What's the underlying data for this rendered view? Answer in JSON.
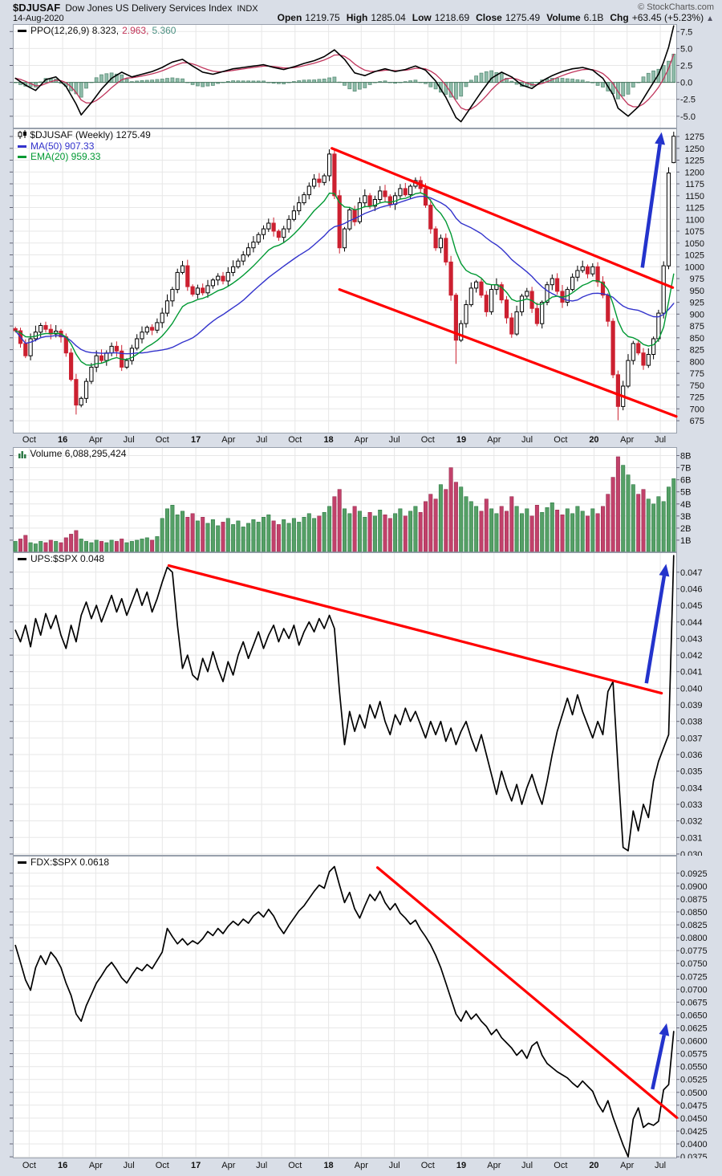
{
  "header": {
    "symbol": "$DJUSAF",
    "name": "Dow Jones US Delivery Services Index",
    "exchange": "INDX",
    "date": "14-Aug-2020",
    "credit": "© StockCharts.com",
    "open_label": "Open",
    "open_value": "1219.75",
    "high_label": "High",
    "high_value": "1285.04",
    "low_label": "Low",
    "low_value": "1218.69",
    "close_label": "Close",
    "close_value": "1275.49",
    "volume_label": "Volume",
    "volume_value": "6.1B",
    "chg_label": "Chg",
    "chg_value": "+63.45 (+5.23%)",
    "chg_arrow": "▲"
  },
  "colors": {
    "grid": "#e7e7e7",
    "panel_border": "#98a0ac",
    "up_candle": "#000000",
    "down_candle": "#cc2030",
    "ma50": "#3333cc",
    "ema20": "#009933",
    "ppo_line": "#000000",
    "ppo_signal": "#c0355c",
    "ppo_hist_fill": "#8fbcaa",
    "ppo_hist_stroke": "#5d8f79",
    "ppo_zero_line": "#46745e",
    "vol_up": "#55a066",
    "vol_up_stroke": "#2e7a46",
    "vol_down": "#c2416b",
    "vol_down_stroke": "#993050",
    "trendline": "#ff0000",
    "arrow": "#2333cc",
    "ratio_line": "#000000"
  },
  "chart_data": [
    {
      "id": "ppo",
      "type": "line",
      "legend": {
        "main": "PPO(12,26,9) 8.323,",
        "hist_value": "2.963,",
        "signal_value": "5.360"
      },
      "ylim": [
        -6.8,
        8.6
      ],
      "yticks": [
        "7.5",
        "5.0",
        "2.5",
        "0.0",
        "-2.5",
        "-5.0"
      ],
      "signal_window": 5,
      "series_anchors": [
        [
          0,
          0.6
        ],
        [
          2,
          -0.4
        ],
        [
          4,
          -1.2
        ],
        [
          6,
          0.4
        ],
        [
          8,
          0.8
        ],
        [
          10,
          -0.6
        ],
        [
          12,
          -3.2
        ],
        [
          13,
          -4.8
        ],
        [
          15,
          -3.0
        ],
        [
          17,
          -1.0
        ],
        [
          19,
          0.6
        ],
        [
          21,
          1.5
        ],
        [
          23,
          0.8
        ],
        [
          25,
          1.2
        ],
        [
          27,
          1.6
        ],
        [
          29,
          2.2
        ],
        [
          31,
          3.0
        ],
        [
          33,
          3.4
        ],
        [
          35,
          2.4
        ],
        [
          37,
          1.5
        ],
        [
          39,
          1.2
        ],
        [
          41,
          1.6
        ],
        [
          43,
          2.0
        ],
        [
          45,
          2.2
        ],
        [
          47,
          2.4
        ],
        [
          49,
          2.6
        ],
        [
          51,
          2.2
        ],
        [
          53,
          1.9
        ],
        [
          55,
          2.3
        ],
        [
          57,
          2.8
        ],
        [
          59,
          3.2
        ],
        [
          61,
          3.8
        ],
        [
          63,
          4.8
        ],
        [
          65,
          3.4
        ],
        [
          67,
          1.4
        ],
        [
          69,
          1.0
        ],
        [
          71,
          1.6
        ],
        [
          73,
          2.0
        ],
        [
          75,
          1.6
        ],
        [
          77,
          1.9
        ],
        [
          79,
          2.4
        ],
        [
          81,
          1.8
        ],
        [
          83,
          0.2
        ],
        [
          85,
          -2.2
        ],
        [
          87,
          -5.2
        ],
        [
          88,
          -5.8
        ],
        [
          90,
          -3.6
        ],
        [
          92,
          -1.4
        ],
        [
          94,
          0.6
        ],
        [
          96,
          1.5
        ],
        [
          98,
          0.8
        ],
        [
          100,
          -0.4
        ],
        [
          102,
          -0.9
        ],
        [
          104,
          0.2
        ],
        [
          106,
          1.0
        ],
        [
          108,
          1.6
        ],
        [
          110,
          2.0
        ],
        [
          112,
          2.2
        ],
        [
          114,
          1.8
        ],
        [
          116,
          0.6
        ],
        [
          118,
          -1.8
        ],
        [
          119,
          -3.8
        ],
        [
          121,
          -5.0
        ],
        [
          123,
          -3.6
        ],
        [
          125,
          -1.2
        ],
        [
          127,
          1.2
        ],
        [
          128,
          3.0
        ],
        [
          129,
          5.2
        ],
        [
          130,
          8.323
        ]
      ]
    },
    {
      "id": "price",
      "type": "candlestick",
      "legend": {
        "symbol": "$DJUSAF (Weekly) 1275.49",
        "ma": "MA(50) 907.33",
        "ema": "EMA(20) 959.33"
      },
      "ylim": [
        648,
        1292
      ],
      "yticks": [
        "1275",
        "1250",
        "1225",
        "1200",
        "1175",
        "1150",
        "1125",
        "1100",
        "1075",
        "1050",
        "1025",
        "1000",
        "975",
        "950",
        "925",
        "900",
        "875",
        "850",
        "825",
        "800",
        "775",
        "750",
        "725",
        "700",
        "675"
      ],
      "ma_samples": 25,
      "ema_samples": 11,
      "closes": [
        865,
        838,
        812,
        848,
        862,
        876,
        868,
        858,
        864,
        852,
        818,
        762,
        708,
        722,
        758,
        788,
        812,
        802,
        818,
        832,
        822,
        788,
        802,
        828,
        848,
        862,
        872,
        866,
        882,
        902,
        928,
        952,
        988,
        1002,
        958,
        942,
        955,
        945,
        960,
        972,
        980,
        970,
        988,
        1000,
        1012,
        1025,
        1040,
        1052,
        1068,
        1080,
        1092,
        1075,
        1062,
        1080,
        1100,
        1118,
        1135,
        1152,
        1170,
        1185,
        1178,
        1192,
        1238,
        1150,
        1040,
        1080,
        1120,
        1095,
        1135,
        1150,
        1128,
        1142,
        1160,
        1148,
        1132,
        1150,
        1165,
        1152,
        1170,
        1182,
        1165,
        1130,
        1080,
        1040,
        1060,
        1010,
        940,
        845,
        880,
        920,
        955,
        968,
        940,
        905,
        952,
        962,
        930,
        892,
        858,
        905,
        938,
        948,
        912,
        880,
        925,
        962,
        975,
        948,
        925,
        952,
        978,
        992,
        1000,
        985,
        1000,
        968,
        940,
        885,
        772,
        705,
        748,
        802,
        838,
        818,
        792,
        815,
        848,
        902,
        1002,
        1198,
        1275.49
      ],
      "last_candle": [
        1219.75,
        1285.04,
        1218.69,
        1275.49
      ],
      "low_overrides": {
        "12": 688,
        "87": 795,
        "119": 676
      },
      "high_overrides": {
        "62": 1248
      },
      "annotations": [
        {
          "type": "trendline",
          "from": [
            62.5,
            1250
          ],
          "to": [
            129.8,
            956
          ]
        },
        {
          "type": "trendline",
          "from": [
            64,
            952
          ],
          "to": [
            130.5,
            684
          ]
        },
        {
          "type": "arrow",
          "from": [
            123.8,
            998
          ],
          "to": [
            127.6,
            1284
          ]
        }
      ]
    },
    {
      "id": "volume",
      "type": "bar",
      "legend": {
        "text": "Volume 6,088,295,424"
      },
      "ylim": [
        0,
        8.7
      ],
      "yticks": [
        "8B",
        "7B",
        "6B",
        "5B",
        "4B",
        "3B",
        "2B",
        "1B"
      ],
      "values": [
        0.9,
        1.1,
        1.4,
        0.8,
        0.7,
        0.9,
        0.8,
        1.0,
        0.9,
        0.8,
        1.2,
        1.5,
        1.8,
        1.1,
        0.9,
        0.8,
        1.0,
        0.9,
        0.8,
        1.0,
        0.9,
        1.1,
        0.8,
        0.9,
        1.0,
        1.1,
        1.2,
        1.0,
        1.3,
        2.8,
        3.6,
        3.9,
        3.1,
        3.4,
        2.9,
        3.2,
        2.6,
        2.9,
        2.4,
        2.7,
        2.2,
        2.5,
        2.8,
        2.3,
        2.6,
        2.1,
        2.4,
        2.7,
        2.5,
        2.9,
        3.1,
        2.6,
        2.3,
        2.7,
        2.4,
        2.8,
        2.5,
        2.9,
        3.2,
        2.8,
        3.0,
        3.3,
        3.8,
        4.6,
        5.2,
        3.6,
        3.2,
        3.8,
        3.4,
        2.9,
        3.3,
        3.0,
        3.5,
        3.1,
        2.8,
        3.2,
        3.6,
        3.0,
        3.4,
        3.8,
        3.3,
        4.2,
        4.8,
        4.4,
        5.6,
        5.2,
        7.0,
        5.8,
        5.4,
        4.6,
        4.2,
        3.8,
        3.4,
        4.4,
        3.6,
        3.2,
        3.8,
        3.4,
        4.6,
        3.8,
        3.2,
        3.6,
        3.0,
        3.9,
        3.3,
        3.7,
        4.1,
        3.5,
        3.1,
        3.6,
        3.2,
        3.8,
        3.4,
        3.0,
        3.6,
        3.2,
        3.8,
        4.8,
        6.2,
        7.9,
        7.2,
        6.4,
        5.6,
        4.8,
        5.2,
        4.4,
        4.0,
        4.6,
        4.2,
        5.4,
        6.09
      ]
    },
    {
      "id": "ups",
      "type": "line",
      "legend": {
        "text": "UPS:$SPX 0.048"
      },
      "ylim": [
        0.0299,
        0.0482
      ],
      "yticks": [
        "0.047",
        "0.046",
        "0.045",
        "0.044",
        "0.043",
        "0.042",
        "0.041",
        "0.040",
        "0.039",
        "0.038",
        "0.037",
        "0.036",
        "0.035",
        "0.034",
        "0.033",
        "0.032",
        "0.031",
        "0.030"
      ],
      "values": [
        0.0435,
        0.0428,
        0.0438,
        0.0425,
        0.0442,
        0.0432,
        0.0445,
        0.0436,
        0.0444,
        0.0432,
        0.0424,
        0.0438,
        0.0428,
        0.0444,
        0.0452,
        0.0442,
        0.045,
        0.044,
        0.0448,
        0.0456,
        0.0446,
        0.0454,
        0.0444,
        0.0452,
        0.046,
        0.045,
        0.0458,
        0.0446,
        0.0454,
        0.0464,
        0.0473,
        0.047,
        0.0438,
        0.0412,
        0.042,
        0.0408,
        0.0405,
        0.0418,
        0.041,
        0.0422,
        0.0412,
        0.0404,
        0.0416,
        0.0408,
        0.042,
        0.0428,
        0.0418,
        0.0426,
        0.0434,
        0.0424,
        0.0432,
        0.0438,
        0.0428,
        0.0436,
        0.043,
        0.0438,
        0.0426,
        0.0434,
        0.044,
        0.0434,
        0.0442,
        0.0436,
        0.0444,
        0.0436,
        0.0398,
        0.0366,
        0.0386,
        0.0374,
        0.0384,
        0.0376,
        0.039,
        0.0382,
        0.0392,
        0.038,
        0.0372,
        0.0384,
        0.0378,
        0.0388,
        0.038,
        0.0386,
        0.0378,
        0.037,
        0.038,
        0.0372,
        0.038,
        0.0368,
        0.0376,
        0.0366,
        0.0374,
        0.038,
        0.037,
        0.0362,
        0.0372,
        0.036,
        0.0348,
        0.0336,
        0.035,
        0.034,
        0.0332,
        0.0342,
        0.033,
        0.034,
        0.0348,
        0.0338,
        0.033,
        0.0344,
        0.036,
        0.0374,
        0.0384,
        0.0394,
        0.0384,
        0.0396,
        0.0386,
        0.0378,
        0.037,
        0.038,
        0.0372,
        0.0398,
        0.0404,
        0.0352,
        0.0304,
        0.0302,
        0.0326,
        0.0314,
        0.033,
        0.0322,
        0.0344,
        0.0356,
        0.0364,
        0.0372,
        0.048
      ],
      "annotations": [
        {
          "type": "trendline",
          "from": [
            30.3,
            0.0474
          ],
          "to": [
            127.6,
            0.0397
          ]
        },
        {
          "type": "arrow",
          "from": [
            124.6,
            0.0403
          ],
          "to": [
            128.5,
            0.0475
          ]
        }
      ]
    },
    {
      "id": "fdx",
      "type": "line",
      "legend": {
        "text": "FDX:$SPX 0.0618"
      },
      "ylim": [
        0.0372,
        0.0959
      ],
      "yticks": [
        "0.0925",
        "0.0900",
        "0.0875",
        "0.0850",
        "0.0825",
        "0.0800",
        "0.0775",
        "0.0750",
        "0.0725",
        "0.0700",
        "0.0675",
        "0.0650",
        "0.0625",
        "0.0600",
        "0.0575",
        "0.0550",
        "0.0525",
        "0.0500",
        "0.0475",
        "0.0450",
        "0.0425",
        "0.0400",
        "0.0375"
      ],
      "values": [
        0.0785,
        0.0752,
        0.0718,
        0.0698,
        0.0742,
        0.0765,
        0.0748,
        0.0772,
        0.076,
        0.0742,
        0.0712,
        0.0688,
        0.0652,
        0.0638,
        0.0668,
        0.069,
        0.0712,
        0.0726,
        0.0742,
        0.0752,
        0.0738,
        0.0722,
        0.0712,
        0.0728,
        0.0742,
        0.0736,
        0.0748,
        0.074,
        0.0756,
        0.0772,
        0.0818,
        0.0802,
        0.0788,
        0.0798,
        0.0786,
        0.0794,
        0.0788,
        0.0798,
        0.0812,
        0.0804,
        0.0818,
        0.0808,
        0.0822,
        0.0832,
        0.0824,
        0.0836,
        0.0828,
        0.0842,
        0.085,
        0.084,
        0.0855,
        0.0842,
        0.0822,
        0.0808,
        0.0824,
        0.0838,
        0.0852,
        0.0862,
        0.0876,
        0.089,
        0.0902,
        0.0896,
        0.0928,
        0.0938,
        0.0902,
        0.0868,
        0.0888,
        0.0856,
        0.0838,
        0.0862,
        0.0884,
        0.0872,
        0.089,
        0.0868,
        0.0854,
        0.0866,
        0.0848,
        0.0838,
        0.0826,
        0.0834,
        0.0816,
        0.0802,
        0.0786,
        0.0766,
        0.0742,
        0.0712,
        0.0682,
        0.0652,
        0.0638,
        0.0658,
        0.0642,
        0.0652,
        0.0638,
        0.0628,
        0.0612,
        0.0622,
        0.0606,
        0.0596,
        0.0586,
        0.0572,
        0.0582,
        0.0566,
        0.059,
        0.0598,
        0.0572,
        0.0556,
        0.0548,
        0.054,
        0.0534,
        0.0528,
        0.0518,
        0.051,
        0.0522,
        0.0512,
        0.0502,
        0.0478,
        0.0462,
        0.0484,
        0.0452,
        0.0425,
        0.0398,
        0.0375,
        0.0448,
        0.047,
        0.0432,
        0.044,
        0.0436,
        0.0444,
        0.0505,
        0.0515,
        0.0618
      ],
      "annotations": [
        {
          "type": "trendline",
          "from": [
            71.5,
            0.0936
          ],
          "to": [
            130.6,
            0.0451
          ]
        },
        {
          "type": "arrow",
          "from": [
            125.8,
            0.0506
          ],
          "to": [
            128.6,
            0.0634
          ]
        }
      ]
    },
    {
      "id": "xaxis",
      "ticks": [
        {
          "pos": 0.0247,
          "label": "Oct"
        },
        {
          "pos": 0.0751,
          "label": "16",
          "year": true
        },
        {
          "pos": 0.125,
          "label": "Apr"
        },
        {
          "pos": 0.1749,
          "label": "Jul"
        },
        {
          "pos": 0.2253,
          "label": "Oct"
        },
        {
          "pos": 0.2758,
          "label": "17",
          "year": true
        },
        {
          "pos": 0.3251,
          "label": "Apr"
        },
        {
          "pos": 0.375,
          "label": "Jul"
        },
        {
          "pos": 0.4254,
          "label": "Oct"
        },
        {
          "pos": 0.4759,
          "label": "18",
          "year": true
        },
        {
          "pos": 0.5252,
          "label": "Apr"
        },
        {
          "pos": 0.5751,
          "label": "Jul"
        },
        {
          "pos": 0.6255,
          "label": "Oct"
        },
        {
          "pos": 0.676,
          "label": "19",
          "year": true
        },
        {
          "pos": 0.7253,
          "label": "Apr"
        },
        {
          "pos": 0.7752,
          "label": "Jul"
        },
        {
          "pos": 0.8257,
          "label": "Oct"
        },
        {
          "pos": 0.876,
          "label": "20",
          "year": true
        },
        {
          "pos": 0.9259,
          "label": "Apr"
        },
        {
          "pos": 0.9759,
          "label": "Jul"
        }
      ]
    }
  ]
}
